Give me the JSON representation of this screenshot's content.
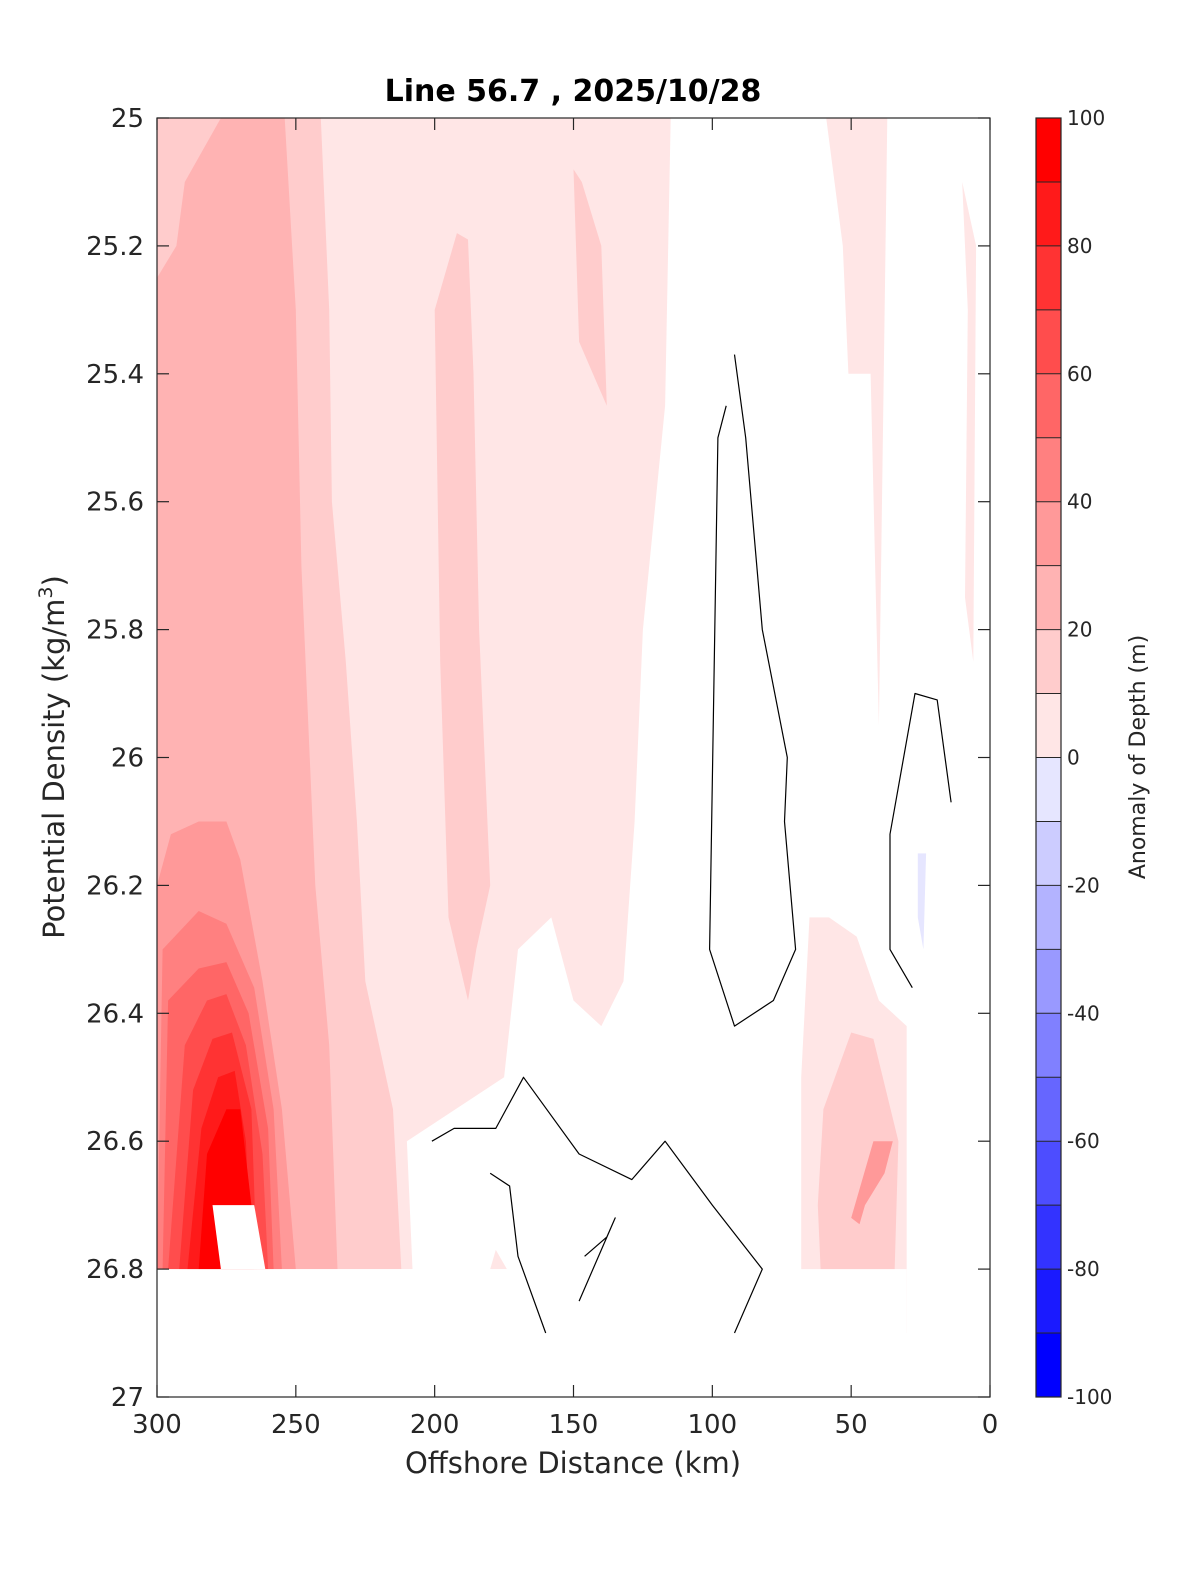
{
  "chart_data": {
    "type": "contour",
    "title": "Line 56.7 , 2025/10/28",
    "xlabel": "Offshore Distance (km)",
    "ylabel_main": "Potential Density (kg/m",
    "ylabel_sup": "3",
    "ylabel_close": ")",
    "xlim": [
      300,
      0
    ],
    "ylim": [
      25,
      27
    ],
    "y_reversed": true,
    "xticks": [
      300,
      250,
      200,
      150,
      100,
      50,
      0
    ],
    "xtick_labels": [
      "300",
      "250",
      "200",
      "150",
      "100",
      "50",
      "0"
    ],
    "yticks": [
      25,
      25.2,
      25.4,
      25.6,
      25.8,
      26,
      26.2,
      26.4,
      26.6,
      26.8,
      27
    ],
    "ytick_labels": [
      "25",
      "25.2",
      "25.4",
      "25.6",
      "25.8",
      "26",
      "26.2",
      "26.4",
      "26.6",
      "26.8",
      "27"
    ],
    "colorbar": {
      "label": "Anomaly of Depth (m)",
      "range": [
        -100,
        100
      ],
      "step": 10,
      "ticks": [
        100,
        80,
        60,
        40,
        20,
        0,
        -20,
        -40,
        -60,
        -80,
        -100
      ],
      "tick_labels": [
        "100",
        "80",
        "60",
        "40",
        "20",
        "0",
        "-20",
        "-40",
        "-60",
        "-80",
        "-100"
      ],
      "colors_top_to_bottom": [
        "#ff0000",
        "#ff1a1a",
        "#ff3333",
        "#ff4d4d",
        "#ff6666",
        "#ff8080",
        "#ff9999",
        "#ffb3b3",
        "#ffcccc",
        "#ffe6e6",
        "#ffffff",
        "#ffffff",
        "#e6e6ff",
        "#ccccff",
        "#b3b3ff",
        "#9999ff",
        "#8080ff",
        "#6666ff",
        "#4d4dff",
        "#3333ff",
        "#1a1aff",
        "#0000ff"
      ]
    },
    "filled_regions": [
      {
        "level": 10,
        "color": "#ffe6e6",
        "points": [
          [
            300,
            25
          ],
          [
            115,
            25
          ],
          [
            117,
            25.45
          ],
          [
            125,
            25.8
          ],
          [
            128,
            26.1
          ],
          [
            132,
            26.35
          ],
          [
            140,
            26.42
          ],
          [
            150,
            26.38
          ],
          [
            158,
            26.25
          ],
          [
            170,
            26.3
          ],
          [
            175,
            26.5
          ],
          [
            210,
            26.6
          ],
          [
            208,
            26.8
          ],
          [
            300,
            26.8
          ]
        ]
      },
      {
        "level": 10,
        "color": "#ffe6e6",
        "points": [
          [
            59,
            25
          ],
          [
            37,
            25
          ],
          [
            40,
            25.95
          ],
          [
            43,
            25.4
          ],
          [
            51,
            25.4
          ],
          [
            53,
            25.2
          ]
        ]
      },
      {
        "level": 10,
        "color": "#ffe6e6",
        "points": [
          [
            10,
            25.1
          ],
          [
            5,
            25.2
          ],
          [
            6,
            25.85
          ],
          [
            9,
            25.75
          ],
          [
            8,
            25.3
          ]
        ]
      },
      {
        "level": 10,
        "color": "#ffe6e6",
        "points": [
          [
            65,
            26.25
          ],
          [
            58,
            26.25
          ],
          [
            48,
            26.28
          ],
          [
            40,
            26.38
          ],
          [
            30,
            26.42
          ],
          [
            30,
            26.9
          ],
          [
            68,
            26.9
          ],
          [
            68,
            26.5
          ]
        ]
      },
      {
        "level": 10,
        "color": "#ffe6e6",
        "points": [
          [
            180,
            26.8
          ],
          [
            174,
            26.8
          ],
          [
            178,
            26.77
          ]
        ]
      },
      {
        "level": 20,
        "color": "#ffcccc",
        "points": [
          [
            300,
            25
          ],
          [
            241,
            25
          ],
          [
            238,
            25.3
          ],
          [
            237,
            25.6
          ],
          [
            232,
            25.85
          ],
          [
            228,
            26.1
          ],
          [
            225,
            26.35
          ],
          [
            215,
            26.55
          ],
          [
            212,
            26.8
          ],
          [
            300,
            26.8
          ]
        ]
      },
      {
        "level": 20,
        "color": "#ffcccc",
        "points": [
          [
            200,
            25.3
          ],
          [
            192,
            25.18
          ],
          [
            188,
            25.19
          ],
          [
            186,
            25.4
          ],
          [
            184,
            25.8
          ],
          [
            180,
            26.2
          ],
          [
            185,
            26.3
          ],
          [
            188,
            26.38
          ],
          [
            195,
            26.25
          ],
          [
            198,
            25.85
          ]
        ]
      },
      {
        "level": 20,
        "color": "#ffcccc",
        "points": [
          [
            150,
            25.08
          ],
          [
            147,
            25.1
          ],
          [
            140,
            25.2
          ],
          [
            138,
            25.45
          ],
          [
            143,
            25.4
          ],
          [
            148,
            25.35
          ]
        ]
      },
      {
        "level": 20,
        "color": "#ffcccc",
        "points": [
          [
            60,
            26.55
          ],
          [
            50,
            26.43
          ],
          [
            42,
            26.44
          ],
          [
            33,
            26.6
          ],
          [
            35,
            26.9
          ],
          [
            60,
            26.9
          ],
          [
            62,
            26.7
          ]
        ]
      },
      {
        "level": 30,
        "color": "#ffb3b3",
        "points": [
          [
            300,
            25.25
          ],
          [
            293,
            25.2
          ],
          [
            290,
            25.1
          ],
          [
            277,
            25
          ],
          [
            254,
            25
          ],
          [
            250,
            25.3
          ],
          [
            248,
            25.7
          ],
          [
            243,
            26.2
          ],
          [
            238,
            26.45
          ],
          [
            235,
            26.8
          ],
          [
            300,
            26.8
          ]
        ]
      },
      {
        "level": 40,
        "color": "#ff9999",
        "points": [
          [
            300,
            26.2
          ],
          [
            295,
            26.12
          ],
          [
            285,
            26.1
          ],
          [
            275,
            26.1
          ],
          [
            270,
            26.16
          ],
          [
            262,
            26.35
          ],
          [
            255,
            26.55
          ],
          [
            250,
            26.8
          ],
          [
            300,
            26.8
          ]
        ]
      },
      {
        "level": 40,
        "color": "#ff9999",
        "points": [
          [
            42,
            26.6
          ],
          [
            35,
            26.6
          ],
          [
            38,
            26.65
          ],
          [
            45,
            26.7
          ],
          [
            47,
            26.73
          ],
          [
            50,
            26.72
          ]
        ]
      },
      {
        "level": 50,
        "color": "#ff8080",
        "points": [
          [
            298,
            26.3
          ],
          [
            285,
            26.24
          ],
          [
            275,
            26.26
          ],
          [
            265,
            26.36
          ],
          [
            258,
            26.55
          ],
          [
            255,
            26.8
          ],
          [
            300,
            26.8
          ]
        ]
      },
      {
        "level": 60,
        "color": "#ff6666",
        "points": [
          [
            296,
            26.38
          ],
          [
            285,
            26.33
          ],
          [
            275,
            26.32
          ],
          [
            267,
            26.4
          ],
          [
            260,
            26.58
          ],
          [
            258,
            26.8
          ],
          [
            298,
            26.8
          ]
        ]
      },
      {
        "level": 70,
        "color": "#ff4d4d",
        "points": [
          [
            290,
            26.45
          ],
          [
            282,
            26.38
          ],
          [
            275,
            26.37
          ],
          [
            268,
            26.45
          ],
          [
            262,
            26.62
          ],
          [
            260,
            26.8
          ],
          [
            296,
            26.8
          ]
        ]
      },
      {
        "level": 80,
        "color": "#ff3333",
        "points": [
          [
            287,
            26.52
          ],
          [
            280,
            26.44
          ],
          [
            273,
            26.43
          ],
          [
            266,
            26.55
          ],
          [
            264,
            26.8
          ],
          [
            292,
            26.8
          ]
        ]
      },
      {
        "level": 90,
        "color": "#ff1a1a",
        "points": [
          [
            284,
            26.58
          ],
          [
            278,
            26.5
          ],
          [
            272,
            26.49
          ],
          [
            268,
            26.6
          ],
          [
            266,
            26.8
          ],
          [
            289,
            26.8
          ]
        ]
      },
      {
        "level": 100,
        "color": "#ff0000",
        "points": [
          [
            282,
            26.62
          ],
          [
            275,
            26.55
          ],
          [
            270,
            26.55
          ],
          [
            266,
            26.7
          ],
          [
            265,
            26.8
          ],
          [
            285,
            26.8
          ]
        ]
      },
      {
        "level": 0,
        "color": "#ffffff",
        "points": [
          [
            300,
            26.8
          ],
          [
            300,
            27
          ],
          [
            0,
            27
          ],
          [
            0,
            26.9
          ],
          [
            30,
            26.9
          ],
          [
            30,
            26.8
          ]
        ]
      },
      {
        "level": 0,
        "color": "#ffffff",
        "points": [
          [
            277,
            26.8
          ],
          [
            280,
            26.7
          ],
          [
            265,
            26.7
          ],
          [
            261,
            26.8
          ]
        ]
      },
      {
        "level": -10,
        "color": "#e6e6ff",
        "points": [
          [
            26,
            26.15
          ],
          [
            23,
            26.15
          ],
          [
            24,
            26.3
          ],
          [
            26,
            26.25
          ]
        ]
      }
    ],
    "contour_lines": [
      {
        "level": 0,
        "points": [
          [
            92,
            25.37
          ],
          [
            88,
            25.5
          ],
          [
            82,
            25.8
          ],
          [
            73,
            26.0
          ],
          [
            74,
            26.1
          ],
          [
            70,
            26.3
          ],
          [
            78,
            26.38
          ],
          [
            92,
            26.42
          ],
          [
            101,
            26.3
          ],
          [
            98,
            25.5
          ],
          [
            95,
            25.45
          ]
        ]
      },
      {
        "level": 0,
        "points": [
          [
            28,
            26.36
          ],
          [
            36,
            26.3
          ],
          [
            36,
            26.12
          ],
          [
            27,
            25.9
          ],
          [
            19,
            25.91
          ],
          [
            14,
            26.07
          ]
        ]
      },
      {
        "level": 0,
        "points": [
          [
            201,
            26.6
          ],
          [
            193,
            26.58
          ],
          [
            178,
            26.58
          ],
          [
            168,
            26.5
          ],
          [
            148,
            26.62
          ],
          [
            129,
            26.66
          ],
          [
            117,
            26.6
          ],
          [
            100,
            26.7
          ],
          [
            82,
            26.8
          ],
          [
            92,
            26.9
          ]
        ]
      },
      {
        "level": 0,
        "points": [
          [
            180,
            26.65
          ],
          [
            173,
            26.67
          ],
          [
            170,
            26.78
          ],
          [
            160,
            26.9
          ]
        ]
      },
      {
        "level": 0,
        "points": [
          [
            146,
            26.78
          ],
          [
            138,
            26.75
          ],
          [
            135,
            26.72
          ],
          [
            148,
            26.85
          ]
        ]
      }
    ]
  }
}
